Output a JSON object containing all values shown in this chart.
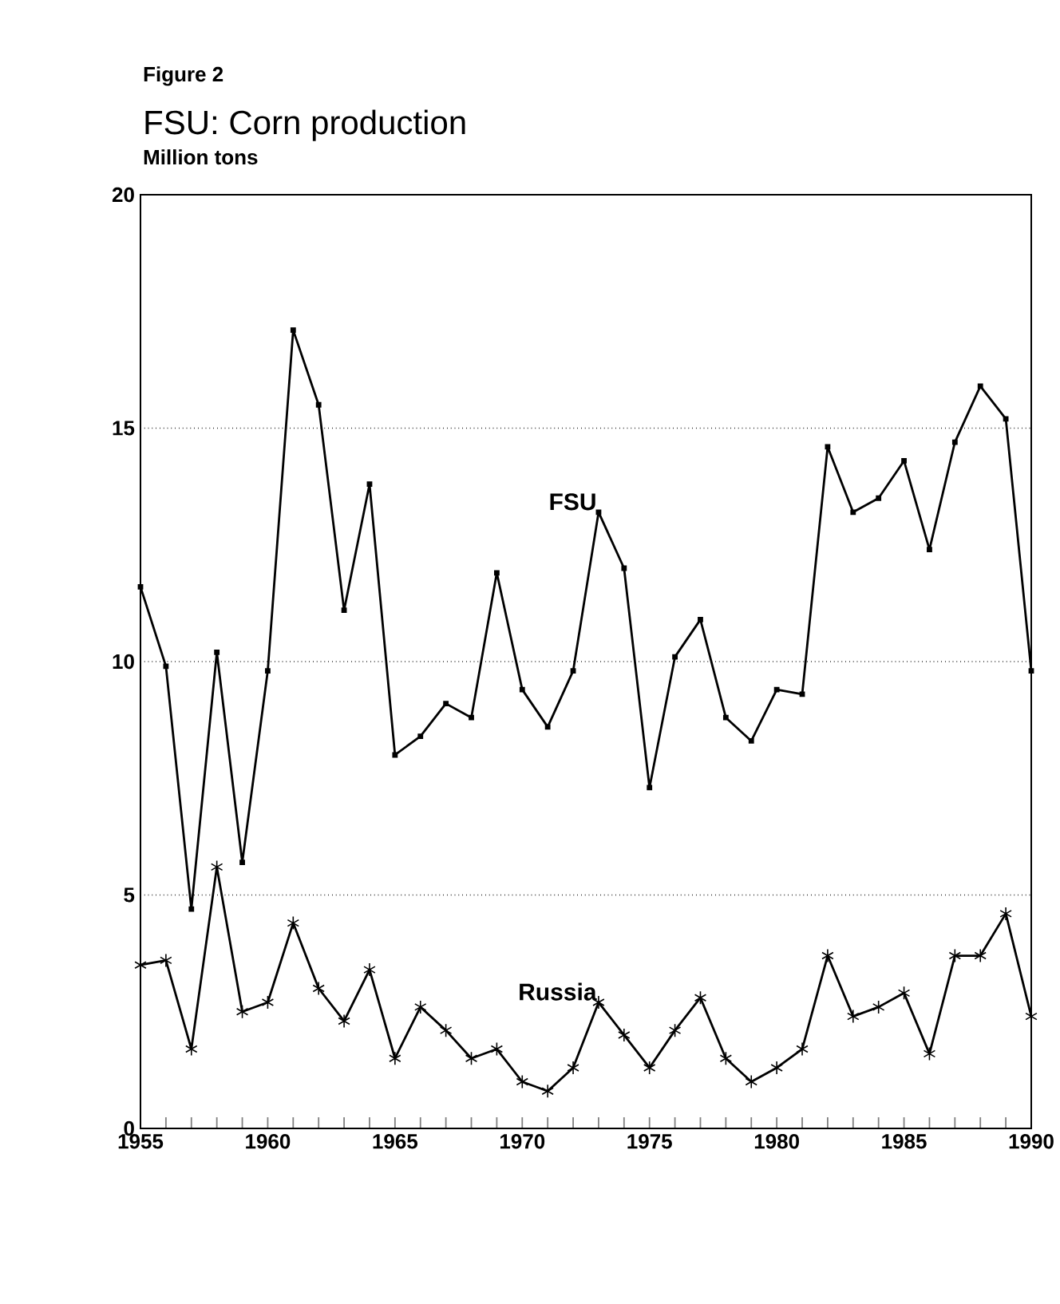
{
  "chart_data": {
    "type": "line",
    "title": "FSU: Corn production",
    "ylabel": "Million tons",
    "annotations": [
      "Figure 2"
    ],
    "x": [
      1955,
      1956,
      1957,
      1958,
      1959,
      1960,
      1961,
      1962,
      1963,
      1964,
      1965,
      1966,
      1967,
      1968,
      1969,
      1970,
      1971,
      1972,
      1973,
      1974,
      1975,
      1976,
      1977,
      1978,
      1979,
      1980,
      1981,
      1982,
      1983,
      1984,
      1985,
      1986,
      1987,
      1988,
      1989,
      1990
    ],
    "series": [
      {
        "name": "FSU",
        "color": "#000000",
        "marker": "square",
        "values": [
          11.6,
          9.9,
          4.7,
          10.2,
          5.7,
          9.8,
          17.1,
          15.5,
          11.1,
          13.8,
          8.0,
          8.4,
          9.1,
          8.8,
          11.9,
          9.4,
          8.6,
          9.8,
          13.2,
          12.0,
          7.3,
          10.1,
          10.9,
          8.8,
          8.3,
          9.4,
          9.3,
          14.6,
          13.2,
          13.5,
          14.3,
          12.4,
          14.7,
          15.9,
          15.2,
          9.8
        ]
      },
      {
        "name": "Russia",
        "color": "#000000",
        "marker": "cross",
        "values": [
          3.5,
          3.6,
          1.7,
          5.6,
          2.5,
          2.7,
          4.4,
          3.0,
          2.3,
          3.4,
          1.5,
          2.6,
          2.1,
          1.5,
          1.7,
          1.0,
          0.8,
          1.3,
          2.7,
          2.0,
          1.3,
          2.1,
          2.8,
          1.5,
          1.0,
          1.3,
          1.7,
          3.7,
          2.4,
          2.6,
          2.9,
          1.6,
          3.7,
          3.7,
          4.6,
          2.4
        ]
      }
    ],
    "xlim": [
      1955,
      1990
    ],
    "ylim": [
      0,
      20
    ],
    "xticks": [
      1955,
      {
        "value": 1956,
        "label": null
      },
      {
        "value": 1957,
        "label": null
      },
      {
        "value": 1958,
        "label": null
      },
      {
        "value": 1959,
        "label": null
      },
      1960,
      {
        "value": 1961,
        "label": null
      },
      {
        "value": 1962,
        "label": null
      },
      {
        "value": 1963,
        "label": null
      },
      {
        "value": 1964,
        "label": null
      },
      1965,
      {
        "value": 1966,
        "label": null
      },
      {
        "value": 1967,
        "label": null
      },
      {
        "value": 1968,
        "label": null
      },
      {
        "value": 1969,
        "label": null
      },
      1970,
      {
        "value": 1971,
        "label": null
      },
      {
        "value": 1972,
        "label": null
      },
      {
        "value": 1973,
        "label": null
      },
      {
        "value": 1974,
        "label": null
      },
      1975,
      {
        "value": 1976,
        "label": null
      },
      {
        "value": 1977,
        "label": null
      },
      {
        "value": 1978,
        "label": null
      },
      {
        "value": 1979,
        "label": null
      },
      1980,
      {
        "value": 1981,
        "label": null
      },
      {
        "value": 1982,
        "label": null
      },
      {
        "value": 1983,
        "label": null
      },
      {
        "value": 1984,
        "label": null
      },
      1985,
      {
        "value": 1986,
        "label": null
      },
      {
        "value": 1987,
        "label": null
      },
      {
        "value": 1988,
        "label": null
      },
      {
        "value": 1989,
        "label": null
      },
      1990
    ],
    "yticks": [
      0,
      5,
      10,
      15,
      20
    ],
    "grid": "y",
    "line_style": "solid"
  }
}
